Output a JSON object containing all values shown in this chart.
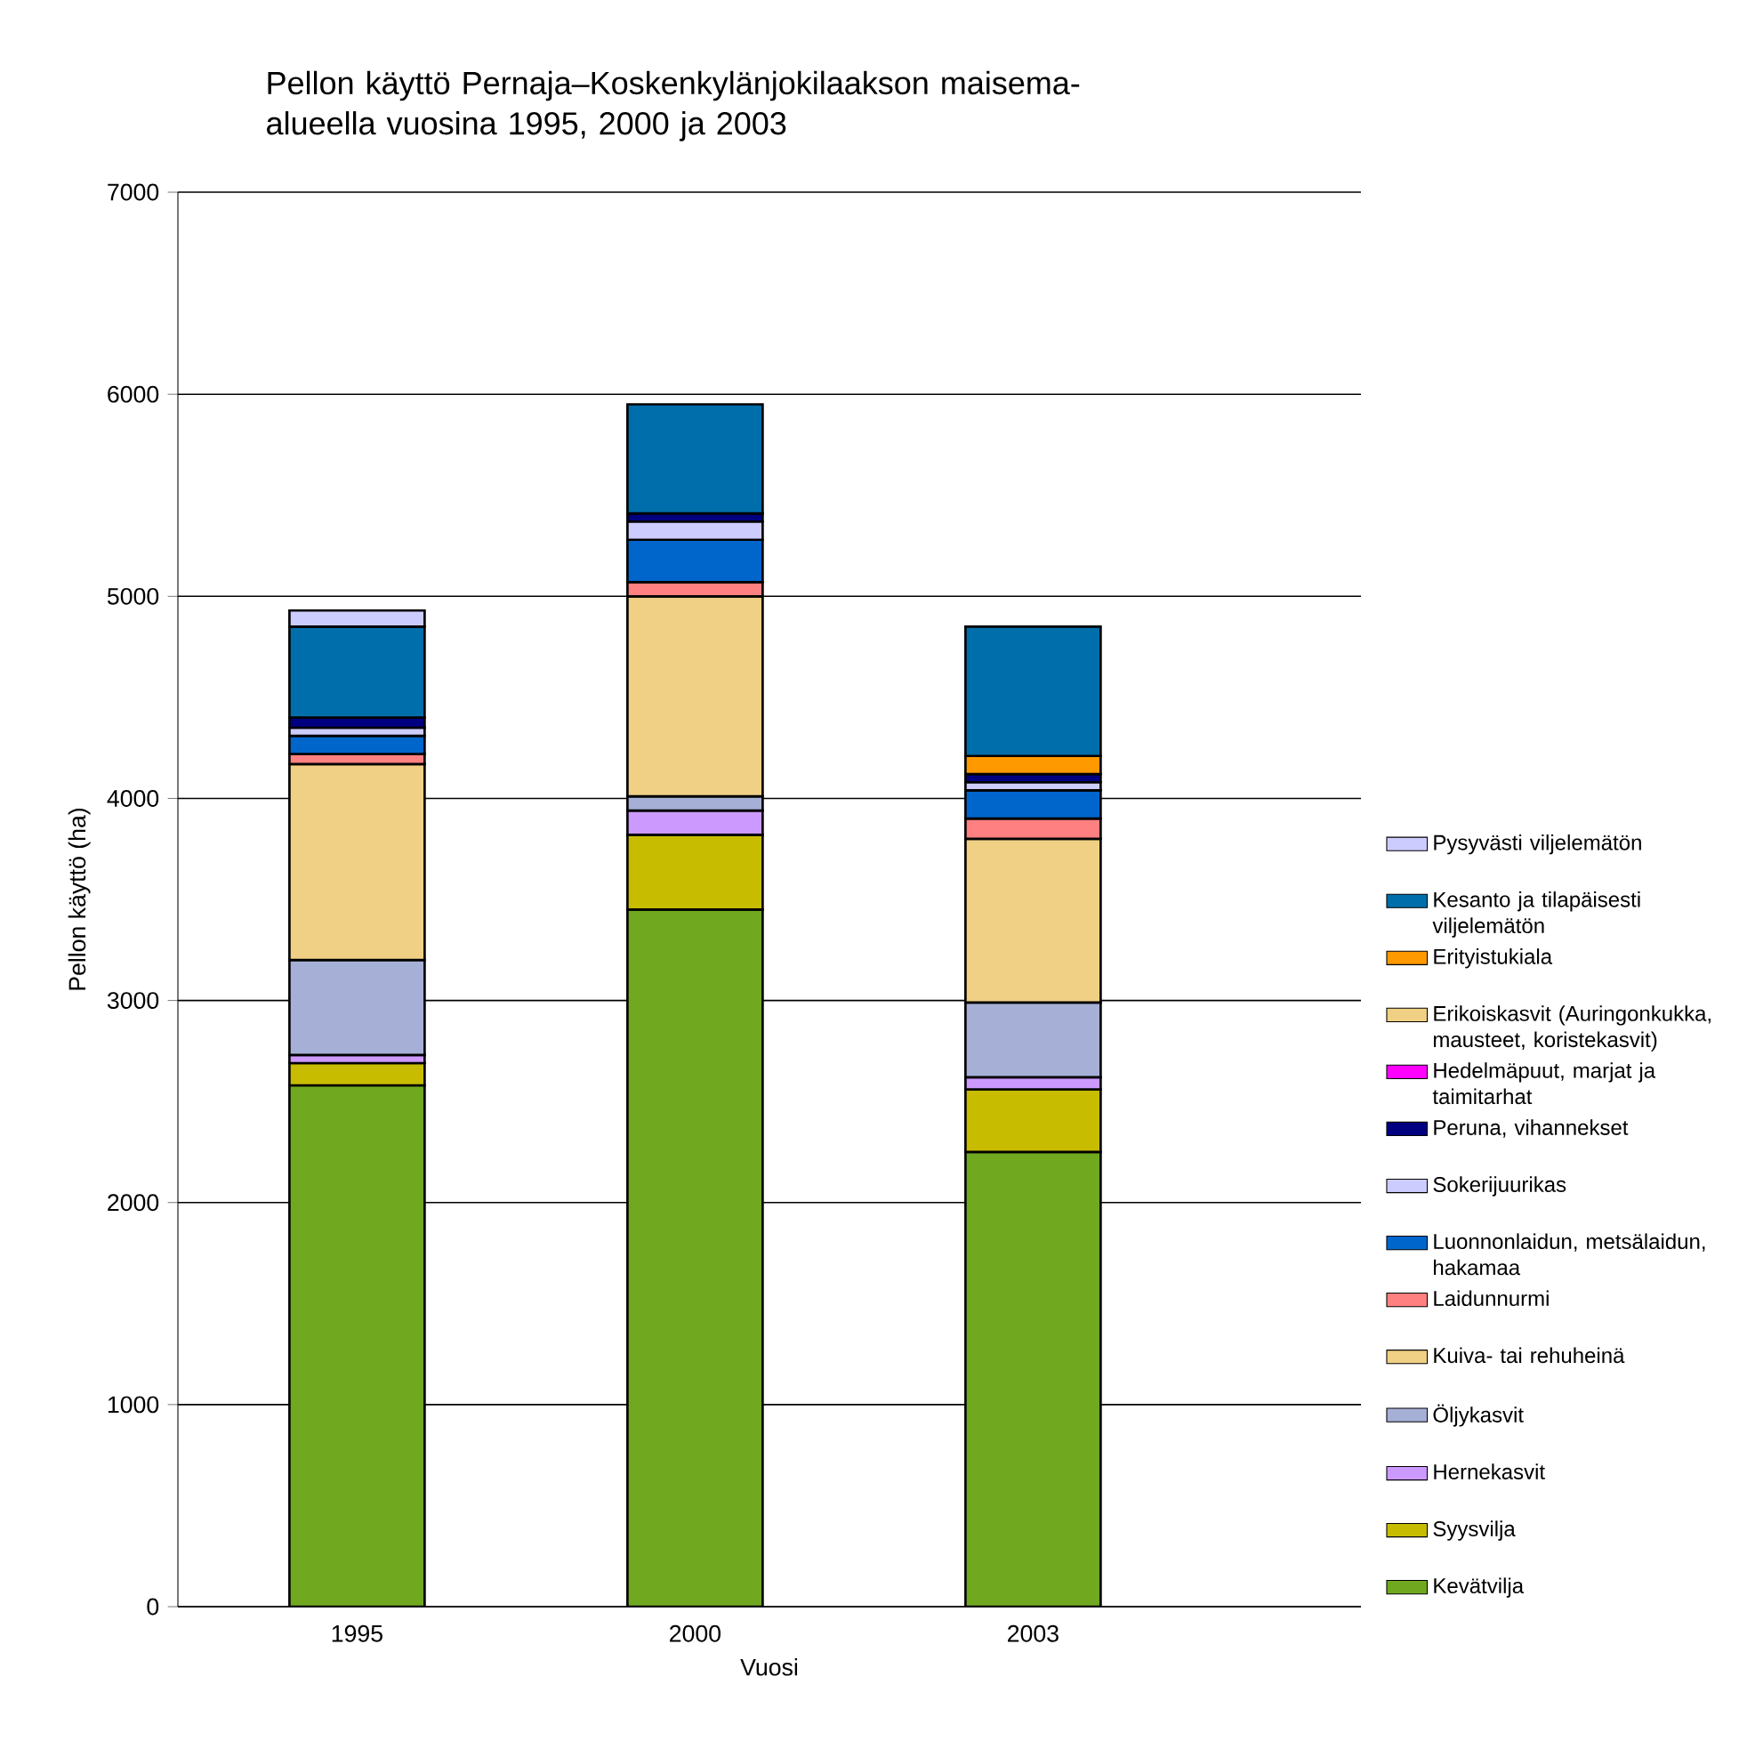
{
  "chart_data": {
    "type": "bar",
    "stacked": true,
    "title": "Pellon käyttö Pernaja–Koskenkylänjokilaakson maisema-alueella vuosina 1995, 2000 ja 2003",
    "xlabel": "Vuosi",
    "ylabel": "Pellon käyttö (ha)",
    "categories": [
      "1995",
      "2000",
      "2003"
    ],
    "ylim": [
      0,
      7000
    ],
    "yticks": [
      0,
      1000,
      2000,
      3000,
      4000,
      5000,
      6000,
      7000
    ],
    "grid": "y",
    "legend": "right",
    "series": [
      {
        "name": "Kevätvilja",
        "color": "#70a820",
        "values": [
          2580,
          3450,
          2250
        ]
      },
      {
        "name": "Syysvilja",
        "color": "#c8bc00",
        "values": [
          110,
          370,
          310
        ]
      },
      {
        "name": "Hernekasvit",
        "color": "#cc99ff",
        "values": [
          40,
          120,
          60
        ]
      },
      {
        "name": "Öljykasvit",
        "color": "#a6b0d6",
        "values": [
          470,
          70,
          370
        ]
      },
      {
        "name": "Kuiva- tai rehuheinä",
        "color": "#f0d084",
        "values": [
          970,
          990,
          810
        ]
      },
      {
        "name": "Laidunnurmi",
        "color": "#ff8080",
        "values": [
          50,
          70,
          100
        ]
      },
      {
        "name": "Luonnonlaidun, metsälaidun, hakamaa",
        "color": "#0066cc",
        "values": [
          90,
          210,
          140
        ]
      },
      {
        "name": "Sokerijuurikas",
        "color": "#ccccff",
        "values": [
          40,
          90,
          40
        ]
      },
      {
        "name": "Peruna, vihannekset",
        "color": "#000080",
        "values": [
          50,
          40,
          40
        ]
      },
      {
        "name": "Hedelmäpuut, marjat ja taimitarhat",
        "color": "#ff00ff",
        "values": [
          null,
          null,
          null
        ]
      },
      {
        "name": "Erikoiskasvit (Auringonkukka, mausteet, koristekasvit)",
        "color": "#f0d084",
        "values": [
          null,
          null,
          null
        ]
      },
      {
        "name": "Erityistukiala",
        "color": "#ff9900",
        "values": [
          null,
          null,
          90
        ]
      },
      {
        "name": "Kesanto ja tilapäisesti viljelemätön",
        "color": "#006eaa",
        "values": [
          450,
          540,
          640
        ]
      },
      {
        "name": "Pysyvästi viljelemätön",
        "color": "#ccccff",
        "values": [
          80,
          null,
          null
        ]
      }
    ]
  }
}
